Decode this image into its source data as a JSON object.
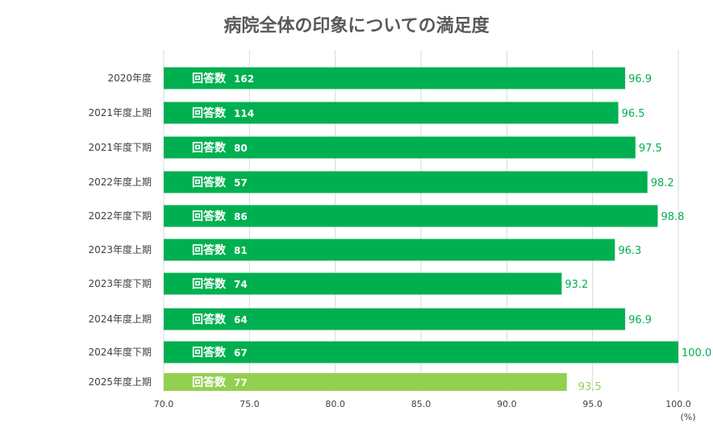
{
  "chart_data": {
    "type": "bar",
    "orientation": "horizontal",
    "title": "病院全体の印象についての満足度",
    "xlabel": "",
    "unit_label": "(%)",
    "xlim": [
      70,
      100
    ],
    "xticks": [
      "70.0",
      "75.0",
      "80.0",
      "85.0",
      "90.0",
      "95.0",
      "100.0"
    ],
    "grid": true,
    "categories": [
      "2020年度",
      "2021年度上期",
      "2021年度下期",
      "2022年度上期",
      "2022年度下期",
      "2023年度上期",
      "2023年度下期",
      "2024年度上期",
      "2024年度下期",
      "2025年度上期"
    ],
    "values": [
      96.9,
      96.5,
      97.5,
      98.2,
      98.8,
      96.3,
      93.2,
      96.9,
      100.0,
      93.5
    ],
    "value_labels": [
      "96.9",
      "96.5",
      "97.5",
      "98.2",
      "98.8",
      "96.3",
      "93.2",
      "96.9",
      "100.0",
      "93.5"
    ],
    "inner_label": "回答数",
    "response_counts": [
      "162",
      "114",
      "80",
      "57",
      "86",
      "81",
      "74",
      "64",
      "67",
      "77"
    ],
    "colors": {
      "bar": "#00b050",
      "highlight": "#92d050",
      "grid": "#d9d9d9"
    }
  }
}
